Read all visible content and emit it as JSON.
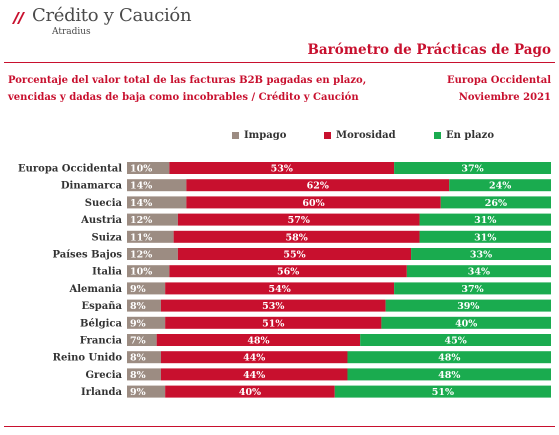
{
  "header": {
    "brand_name": "Crédito y Caución",
    "brand_sub": "Atradius",
    "report_title": "Barómetro de Prácticas de Pago",
    "subtitle_line1": "Porcentaje del valor total de las facturas B2B pagadas en plazo,",
    "subtitle_line2": "vencidas y dadas de baja como incobrables  / Crédito y Caución",
    "region": "Europa Occidental",
    "date": "Noviembre  2021"
  },
  "colors": {
    "brand_red": "#c8102e",
    "impago": "#9c8c82",
    "morosidad": "#c8102e",
    "en_plazo": "#1aab4f"
  },
  "chart_data": {
    "type": "bar",
    "orientation": "horizontal",
    "stacked": true,
    "categories": [
      "Europa Occidental",
      "Dinamarca",
      "Suecia",
      "Austria",
      "Suiza",
      "Países Bajos",
      "Italia",
      "Alemania",
      "España",
      "Bélgica",
      "Francia",
      "Reino Unido",
      "Grecia",
      "Irlanda"
    ],
    "series": [
      {
        "name": "Impago",
        "color": "#9c8c82",
        "values": [
          10,
          14,
          14,
          12,
          11,
          12,
          10,
          9,
          8,
          9,
          7,
          8,
          8,
          9
        ]
      },
      {
        "name": "Morosidad",
        "color": "#c8102e",
        "values": [
          53,
          62,
          60,
          57,
          58,
          55,
          56,
          54,
          53,
          51,
          48,
          44,
          44,
          40
        ]
      },
      {
        "name": "En plazo",
        "color": "#1aab4f",
        "values": [
          37,
          24,
          26,
          31,
          31,
          33,
          34,
          37,
          39,
          40,
          45,
          48,
          48,
          51
        ]
      }
    ],
    "value_format": "{v}%",
    "xlim": [
      0,
      100
    ],
    "legend_position": "top",
    "grid": false
  }
}
